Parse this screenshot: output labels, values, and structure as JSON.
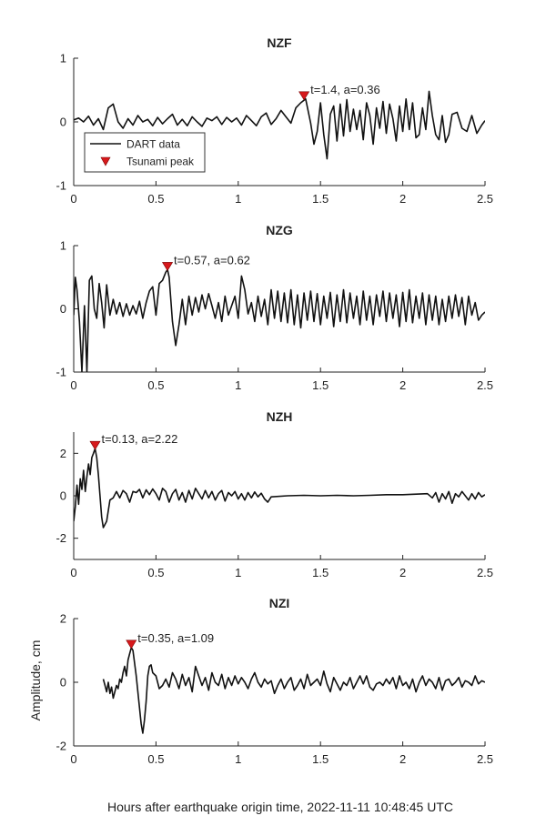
{
  "figure": {
    "xlabel": "Hours after earthquake origin time, 2022-11-11 10:48:45 UTC",
    "ylabel": "Amplitude, cm",
    "legend": {
      "placement": "inside-first-panel-lower-left",
      "entries": [
        {
          "label": "DART data",
          "marker": "line",
          "color": "#111111"
        },
        {
          "label": "Tsunami peak",
          "marker": "triangle-down",
          "color": "#d7191c"
        }
      ]
    }
  },
  "chart_data": [
    {
      "type": "line",
      "title": "NZF",
      "xlim": [
        0,
        2.5
      ],
      "ylim": [
        -1,
        1
      ],
      "xticks": [
        "0",
        "0.5",
        "1",
        "1.5",
        "2",
        "2.5"
      ],
      "yticks": [
        "-1",
        "0",
        "1"
      ],
      "peak": {
        "t": 1.4,
        "a": 0.36,
        "label": "t=1.4, a=0.36"
      },
      "series": [
        {
          "x": [
            0,
            0.03,
            0.06,
            0.09,
            0.12,
            0.15,
            0.18,
            0.21,
            0.24,
            0.27,
            0.3,
            0.33,
            0.36,
            0.39,
            0.42,
            0.45,
            0.48,
            0.51,
            0.54,
            0.57,
            0.6,
            0.63,
            0.66,
            0.69,
            0.72,
            0.75,
            0.78,
            0.81,
            0.84,
            0.87,
            0.9,
            0.93,
            0.96,
            0.99,
            1.02,
            1.05,
            1.08,
            1.11,
            1.14,
            1.17,
            1.2,
            1.23,
            1.26,
            1.29,
            1.32,
            1.35,
            1.38,
            1.41,
            1.44,
            1.46,
            1.48,
            1.5,
            1.52,
            1.54,
            1.56,
            1.58,
            1.6,
            1.62,
            1.64,
            1.66,
            1.68,
            1.7,
            1.72,
            1.74,
            1.76,
            1.78,
            1.8,
            1.82,
            1.84,
            1.86,
            1.88,
            1.9,
            1.92,
            1.94,
            1.96,
            1.98,
            2.0,
            2.02,
            2.04,
            2.06,
            2.08,
            2.1,
            2.12,
            2.14,
            2.16,
            2.18,
            2.2,
            2.22,
            2.24,
            2.26,
            2.28,
            2.3,
            2.33,
            2.36,
            2.39,
            2.42,
            2.45,
            2.48,
            2.5
          ],
          "y": [
            0.03,
            0.06,
            0.0,
            0.09,
            -0.05,
            0.05,
            -0.12,
            0.22,
            0.28,
            0.0,
            -0.1,
            0.05,
            -0.05,
            0.1,
            0.0,
            0.04,
            -0.06,
            0.07,
            -0.03,
            0.05,
            0.12,
            -0.05,
            0.04,
            -0.06,
            0.08,
            0.0,
            -0.07,
            0.06,
            0.02,
            0.08,
            -0.04,
            0.07,
            0.0,
            0.06,
            -0.05,
            0.1,
            0.02,
            -0.06,
            0.08,
            0.14,
            -0.04,
            0.05,
            0.18,
            0.08,
            -0.02,
            0.22,
            0.3,
            0.36,
            -0.02,
            -0.35,
            -0.15,
            0.3,
            -0.2,
            -0.58,
            0.12,
            0.25,
            -0.3,
            0.28,
            -0.22,
            0.35,
            -0.15,
            0.2,
            -0.12,
            0.18,
            -0.28,
            0.3,
            0.1,
            -0.35,
            0.22,
            -0.1,
            0.32,
            -0.18,
            0.28,
            0.05,
            -0.3,
            0.25,
            -0.15,
            0.36,
            -0.12,
            0.3,
            -0.25,
            -0.2,
            0.22,
            -0.12,
            0.48,
            0.1,
            -0.2,
            -0.28,
            0.1,
            -0.32,
            -0.2,
            0.12,
            0.15,
            -0.1,
            -0.15,
            0.1,
            -0.18,
            -0.05,
            0.02
          ]
        }
      ]
    },
    {
      "type": "line",
      "title": "NZG",
      "xlim": [
        0,
        2.5
      ],
      "ylim": [
        -1,
        1
      ],
      "xticks": [
        "0",
        "0.5",
        "1",
        "1.5",
        "2",
        "2.5"
      ],
      "yticks": [
        "-1",
        "0",
        "1"
      ],
      "peak": {
        "t": 0.57,
        "a": 0.62,
        "label": "t=0.57, a=0.62"
      },
      "series": [
        {
          "x": [
            0,
            0.01,
            0.02,
            0.035,
            0.05,
            0.065,
            0.08,
            0.095,
            0.11,
            0.125,
            0.14,
            0.155,
            0.17,
            0.185,
            0.2,
            0.22,
            0.24,
            0.26,
            0.28,
            0.3,
            0.32,
            0.34,
            0.36,
            0.38,
            0.4,
            0.42,
            0.44,
            0.46,
            0.48,
            0.5,
            0.52,
            0.54,
            0.56,
            0.57,
            0.58,
            0.6,
            0.62,
            0.64,
            0.66,
            0.68,
            0.7,
            0.72,
            0.74,
            0.76,
            0.78,
            0.8,
            0.82,
            0.84,
            0.86,
            0.88,
            0.9,
            0.92,
            0.94,
            0.96,
            0.98,
            1.0,
            1.02,
            1.04,
            1.06,
            1.08,
            1.1,
            1.12,
            1.14,
            1.16,
            1.18,
            1.2,
            1.22,
            1.24,
            1.26,
            1.28,
            1.3,
            1.32,
            1.34,
            1.36,
            1.38,
            1.4,
            1.42,
            1.44,
            1.46,
            1.48,
            1.5,
            1.52,
            1.54,
            1.56,
            1.58,
            1.6,
            1.62,
            1.64,
            1.66,
            1.68,
            1.7,
            1.72,
            1.74,
            1.76,
            1.78,
            1.8,
            1.82,
            1.84,
            1.86,
            1.88,
            1.9,
            1.92,
            1.94,
            1.96,
            1.98,
            2.0,
            2.02,
            2.04,
            2.06,
            2.08,
            2.1,
            2.12,
            2.14,
            2.16,
            2.18,
            2.2,
            2.22,
            2.24,
            2.26,
            2.28,
            2.3,
            2.32,
            2.34,
            2.36,
            2.38,
            2.4,
            2.42,
            2.44,
            2.46,
            2.48,
            2.5
          ],
          "y": [
            -0.1,
            0.5,
            0.3,
            -0.2,
            -1.0,
            0.05,
            -1.0,
            0.45,
            0.52,
            0.0,
            -0.15,
            0.4,
            0.1,
            -0.3,
            0.38,
            -0.1,
            0.15,
            -0.08,
            0.1,
            -0.12,
            0.08,
            -0.1,
            0.05,
            -0.08,
            0.12,
            -0.15,
            0.1,
            0.28,
            0.35,
            -0.1,
            0.4,
            0.45,
            0.58,
            0.62,
            0.5,
            -0.2,
            -0.58,
            -0.25,
            0.15,
            -0.25,
            0.2,
            -0.1,
            0.18,
            -0.05,
            0.22,
            0.0,
            0.24,
            0.05,
            -0.15,
            0.1,
            -0.2,
            0.2,
            -0.1,
            0.05,
            0.2,
            -0.15,
            0.52,
            0.3,
            -0.08,
            0.1,
            -0.2,
            0.2,
            -0.12,
            0.15,
            -0.25,
            0.3,
            -0.15,
            0.28,
            -0.2,
            0.25,
            -0.22,
            0.3,
            -0.25,
            0.22,
            -0.3,
            0.25,
            -0.18,
            0.28,
            -0.2,
            0.24,
            -0.25,
            0.2,
            -0.15,
            0.26,
            -0.28,
            0.22,
            -0.2,
            0.3,
            -0.22,
            0.25,
            -0.15,
            0.2,
            -0.25,
            0.28,
            -0.18,
            0.2,
            -0.25,
            0.22,
            -0.12,
            0.28,
            -0.2,
            0.25,
            -0.15,
            0.22,
            -0.28,
            0.26,
            -0.2,
            0.3,
            -0.22,
            0.2,
            -0.15,
            0.25,
            -0.25,
            0.22,
            -0.18,
            0.2,
            -0.25,
            0.15,
            -0.2,
            0.2,
            -0.15,
            0.22,
            -0.12,
            0.18,
            -0.25,
            0.2,
            -0.1,
            0.1,
            -0.18,
            -0.1,
            -0.05
          ]
        }
      ]
    },
    {
      "type": "line",
      "title": "NZH",
      "xlim": [
        0,
        2.5
      ],
      "ylim": [
        -3,
        3
      ],
      "xticks": [
        "0",
        "0.5",
        "1",
        "1.5",
        "2",
        "2.5"
      ],
      "yticks": [
        "-2",
        "0",
        "2"
      ],
      "peak": {
        "t": 0.13,
        "a": 2.22,
        "label": "t=0.13, a=2.22"
      },
      "series": [
        {
          "x": [
            0,
            0.01,
            0.02,
            0.03,
            0.04,
            0.05,
            0.06,
            0.07,
            0.08,
            0.09,
            0.1,
            0.11,
            0.12,
            0.13,
            0.14,
            0.15,
            0.16,
            0.17,
            0.18,
            0.2,
            0.22,
            0.24,
            0.26,
            0.28,
            0.3,
            0.32,
            0.34,
            0.36,
            0.38,
            0.4,
            0.42,
            0.44,
            0.46,
            0.48,
            0.5,
            0.52,
            0.54,
            0.56,
            0.58,
            0.6,
            0.62,
            0.64,
            0.66,
            0.68,
            0.7,
            0.72,
            0.74,
            0.76,
            0.78,
            0.8,
            0.82,
            0.84,
            0.86,
            0.88,
            0.9,
            0.92,
            0.94,
            0.96,
            0.98,
            1.0,
            1.02,
            1.04,
            1.06,
            1.08,
            1.1,
            1.12,
            1.14,
            1.16,
            1.18,
            1.2,
            1.3,
            1.4,
            1.5,
            1.6,
            1.7,
            1.8,
            1.9,
            2.0,
            2.1,
            2.15,
            2.18,
            2.2,
            2.22,
            2.24,
            2.26,
            2.28,
            2.3,
            2.32,
            2.34,
            2.36,
            2.38,
            2.4,
            2.42,
            2.44,
            2.46,
            2.48,
            2.5
          ],
          "y": [
            -1.2,
            -0.5,
            0.5,
            -0.4,
            0.8,
            0.3,
            1.2,
            0.2,
            0.9,
            1.5,
            1.0,
            1.8,
            2.0,
            2.22,
            1.8,
            1.0,
            0.0,
            -1.0,
            -1.5,
            -1.2,
            -0.2,
            -0.1,
            0.2,
            -0.1,
            0.25,
            0.1,
            -0.3,
            0.2,
            0.15,
            0.3,
            -0.1,
            0.28,
            0.05,
            0.32,
            0.1,
            -0.2,
            0.35,
            0.2,
            -0.3,
            0.1,
            0.3,
            -0.2,
            0.15,
            -0.3,
            0.25,
            -0.15,
            0.35,
            0.1,
            -0.15,
            0.25,
            -0.1,
            0.2,
            -0.2,
            0.1,
            0.25,
            -0.25,
            0.15,
            0.0,
            0.2,
            -0.15,
            0.1,
            -0.2,
            0.15,
            -0.1,
            0.18,
            -0.05,
            0.12,
            -0.15,
            -0.3,
            -0.05,
            0.0,
            0.02,
            0.0,
            0.02,
            0.0,
            0.02,
            0.05,
            0.05,
            0.08,
            0.1,
            -0.1,
            0.15,
            -0.3,
            0.1,
            -0.15,
            0.2,
            -0.35,
            0.1,
            -0.05,
            0.2,
            0.0,
            -0.2,
            0.1,
            -0.15,
            0.15,
            -0.05,
            0.05
          ]
        }
      ]
    },
    {
      "type": "line",
      "title": "NZI",
      "xlim": [
        0,
        2.5
      ],
      "ylim": [
        -2,
        2
      ],
      "xticks": [
        "0",
        "0.5",
        "1",
        "1.5",
        "2",
        "2.5"
      ],
      "yticks": [
        "-2",
        "0",
        "2"
      ],
      "peak": {
        "t": 0.35,
        "a": 1.09,
        "label": "t=0.35, a=1.09"
      },
      "series": [
        {
          "x": [
            0.18,
            0.19,
            0.2,
            0.21,
            0.22,
            0.23,
            0.24,
            0.25,
            0.26,
            0.27,
            0.28,
            0.29,
            0.3,
            0.31,
            0.32,
            0.33,
            0.34,
            0.35,
            0.36,
            0.37,
            0.38,
            0.39,
            0.4,
            0.41,
            0.42,
            0.43,
            0.44,
            0.45,
            0.46,
            0.47,
            0.48,
            0.5,
            0.52,
            0.54,
            0.56,
            0.58,
            0.6,
            0.62,
            0.64,
            0.66,
            0.68,
            0.7,
            0.72,
            0.74,
            0.76,
            0.78,
            0.8,
            0.82,
            0.84,
            0.86,
            0.88,
            0.9,
            0.92,
            0.94,
            0.96,
            0.98,
            1.0,
            1.02,
            1.04,
            1.06,
            1.08,
            1.1,
            1.12,
            1.14,
            1.16,
            1.18,
            1.2,
            1.22,
            1.24,
            1.26,
            1.28,
            1.3,
            1.32,
            1.34,
            1.36,
            1.38,
            1.4,
            1.42,
            1.44,
            1.46,
            1.48,
            1.5,
            1.52,
            1.54,
            1.56,
            1.58,
            1.6,
            1.62,
            1.64,
            1.66,
            1.68,
            1.7,
            1.72,
            1.74,
            1.76,
            1.78,
            1.8,
            1.82,
            1.84,
            1.86,
            1.88,
            1.9,
            1.92,
            1.94,
            1.96,
            1.98,
            2.0,
            2.02,
            2.04,
            2.06,
            2.08,
            2.1,
            2.12,
            2.14,
            2.16,
            2.18,
            2.2,
            2.22,
            2.24,
            2.26,
            2.28,
            2.3,
            2.32,
            2.34,
            2.36,
            2.38,
            2.4,
            2.42,
            2.44,
            2.46,
            2.48,
            2.5
          ],
          "y": [
            0.1,
            -0.1,
            -0.3,
            0.0,
            -0.35,
            -0.15,
            -0.5,
            -0.3,
            -0.1,
            -0.2,
            0.1,
            0.0,
            0.3,
            0.5,
            0.2,
            0.7,
            0.9,
            1.09,
            1.0,
            0.6,
            0.2,
            -0.3,
            -0.8,
            -1.3,
            -1.6,
            -1.2,
            -0.6,
            0.2,
            0.5,
            0.55,
            0.3,
            0.2,
            -0.2,
            -0.1,
            0.1,
            -0.15,
            0.3,
            0.1,
            -0.2,
            0.25,
            -0.1,
            0.15,
            -0.3,
            0.5,
            0.2,
            -0.1,
            0.15,
            -0.25,
            0.3,
            0.0,
            -0.1,
            0.25,
            -0.2,
            0.15,
            -0.1,
            0.2,
            -0.05,
            0.15,
            0.0,
            -0.2,
            0.1,
            0.3,
            0.0,
            -0.15,
            0.1,
            -0.05,
            0.05,
            -0.35,
            -0.1,
            0.1,
            -0.2,
            0.0,
            0.15,
            -0.25,
            -0.1,
            0.1,
            -0.2,
            0.25,
            -0.1,
            0.0,
            0.1,
            -0.1,
            0.35,
            -0.05,
            -0.3,
            0.15,
            -0.05,
            -0.25,
            0.0,
            -0.1,
            0.15,
            -0.2,
            0.0,
            0.2,
            -0.05,
            0.2,
            -0.15,
            -0.25,
            -0.05,
            0.0,
            -0.1,
            0.1,
            -0.05,
            0.15,
            -0.2,
            0.2,
            -0.1,
            0.0,
            -0.2,
            0.1,
            -0.3,
            0.0,
            0.2,
            -0.1,
            0.1,
            0.0,
            -0.2,
            0.15,
            -0.25,
            0.05,
            0.1,
            -0.1,
            0.0,
            0.15,
            -0.15,
            0.05,
            0.0,
            -0.1,
            0.2,
            -0.05,
            0.05,
            0.0
          ]
        }
      ]
    }
  ]
}
